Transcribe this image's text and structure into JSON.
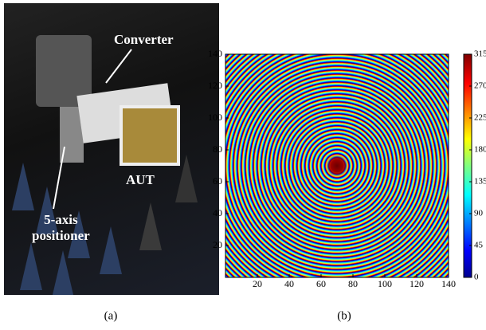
{
  "photo": {
    "caption": "(a)",
    "annotations": {
      "converter": "Converter",
      "aut": "AUT",
      "positioner": [
        "5-axis",
        "positioner"
      ]
    }
  },
  "heatmap": {
    "caption": "(b)",
    "xlim": [
      0,
      140
    ],
    "ylim": [
      0,
      140
    ],
    "xticks": [
      20,
      40,
      60,
      80,
      100,
      120,
      140
    ],
    "yticks": [
      20,
      40,
      60,
      80,
      100,
      120,
      140
    ],
    "colorbar": {
      "lim": [
        0,
        315
      ],
      "ticks": [
        0,
        45,
        90,
        135,
        180,
        225,
        270,
        315
      ],
      "colormap": "jet"
    }
  }
}
